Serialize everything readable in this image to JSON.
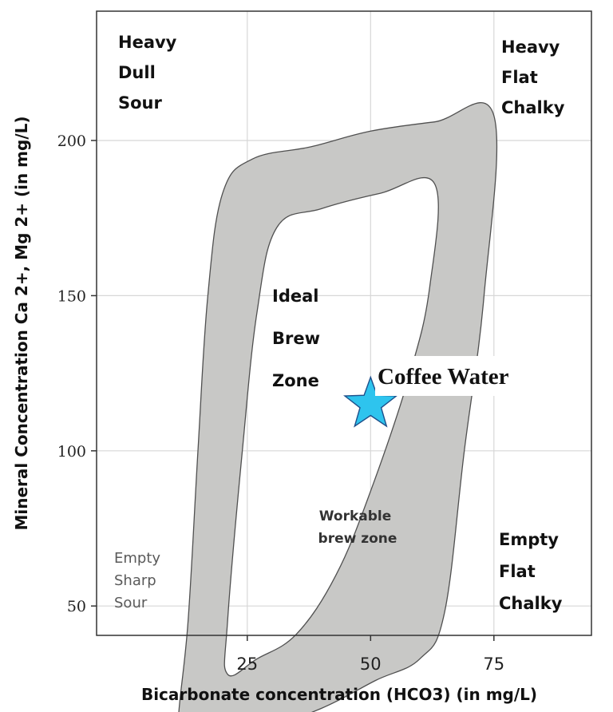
{
  "chart_data": {
    "type": "area",
    "xlabel": "Bicarbonate concentration (HCO3)  (in mg/L)",
    "ylabel": "Mineral Concentration   Ca 2+,  Mg 2+ (in mg/L)",
    "x_ticks": [
      25,
      50,
      75
    ],
    "y_ticks": [
      50,
      100,
      150,
      200
    ],
    "grid": true,
    "colors": {
      "zone_fill": "#c8c8c6",
      "zone_stroke": "#505050",
      "star_fill": "#2ec4ee",
      "star_stroke": "#1e4f8a"
    },
    "regions": [
      {
        "name": "workable-brew-zone",
        "label": "Workable brew zone",
        "outer": [
          [
            13,
            7
          ],
          [
            11,
            12
          ],
          [
            13,
            45
          ],
          [
            15,
            100
          ],
          [
            17,
            150
          ],
          [
            20,
            183
          ],
          [
            26,
            194
          ],
          [
            38,
            198
          ],
          [
            50,
            203
          ],
          [
            63,
            206
          ],
          [
            75,
            208
          ],
          [
            73,
            150
          ],
          [
            69,
            100
          ],
          [
            65,
            48
          ],
          [
            60,
            33
          ],
          [
            51,
            26
          ],
          [
            40,
            17
          ],
          [
            27,
            10
          ]
        ],
        "inner": [
          [
            21,
            28
          ],
          [
            21,
            45
          ],
          [
            24,
            100
          ],
          [
            27,
            145
          ],
          [
            31,
            172
          ],
          [
            40,
            178
          ],
          [
            52,
            183
          ],
          [
            63,
            186
          ],
          [
            62,
            153
          ],
          [
            58,
            125
          ],
          [
            50,
            87
          ],
          [
            43,
            60
          ],
          [
            35,
            41
          ],
          [
            27,
            33
          ]
        ]
      }
    ],
    "marker": {
      "name": "Coffee Water",
      "x": 50,
      "y": 115
    },
    "annotations": [
      {
        "id": "top-left",
        "lines": [
          "Heavy",
          "Dull",
          "Sour"
        ]
      },
      {
        "id": "top-right",
        "lines": [
          "Heavy",
          "Flat",
          "Chalky"
        ]
      },
      {
        "id": "bottom-right",
        "lines": [
          "Empty",
          "Flat",
          "Chalky"
        ]
      },
      {
        "id": "bottom-left",
        "lines": [
          "Empty",
          "Sharp",
          "Sour"
        ]
      },
      {
        "id": "ideal",
        "lines": [
          "Ideal",
          "Brew",
          "Zone"
        ]
      },
      {
        "id": "workable",
        "lines": [
          "Workable",
          "brew zone"
        ]
      }
    ]
  }
}
